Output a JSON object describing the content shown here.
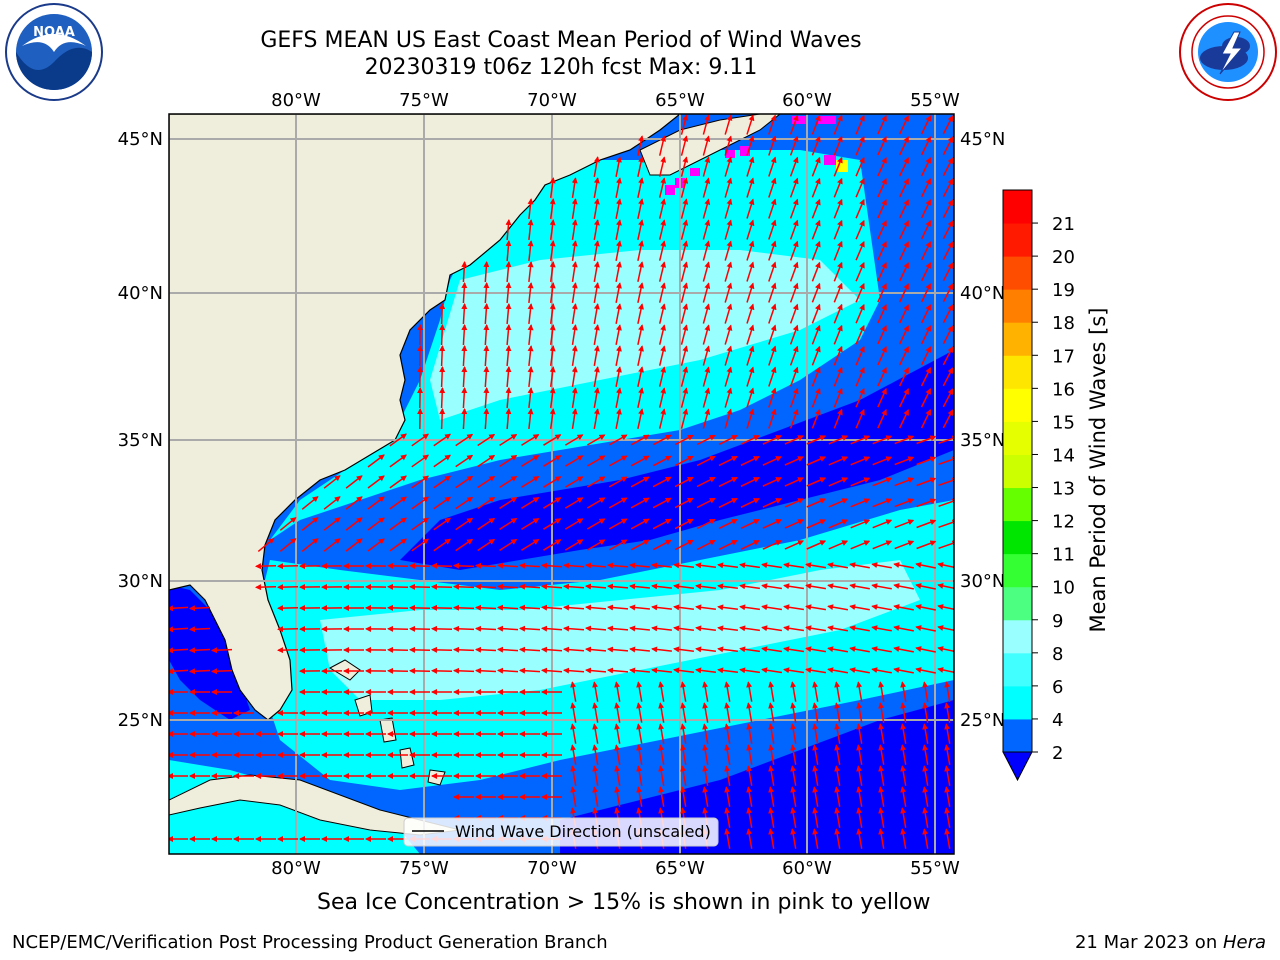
{
  "header": {
    "title_line1": "GEFS MEAN US East Coast Mean Period of Wind Waves",
    "title_line2": "20230319 t06z 120h fcst   Max: 9.11"
  },
  "logos": {
    "left": {
      "name": "noaa-logo",
      "text": "NOAA",
      "ring_text": "NATIONAL OCEANIC AND ATMOSPHERIC ADMINISTRATION · U.S. DEPARTMENT OF COMMERCE"
    },
    "right": {
      "name": "nws-logo",
      "ring_text": "NATIONAL WEATHER SERVICE"
    }
  },
  "map": {
    "region": "US East Coast / Western North Atlantic",
    "lon_ticks": [
      "80°W",
      "75°W",
      "70°W",
      "65°W",
      "60°W",
      "55°W"
    ],
    "lat_ticks": [
      "45°N",
      "40°N",
      "35°N",
      "30°N",
      "25°N"
    ],
    "lon_range": [
      -85,
      -54.5
    ],
    "lat_range": [
      20.5,
      45.8
    ],
    "gridlines": true,
    "vector_color": "#ff0000",
    "land_color": "#efeedd",
    "legend": {
      "label": "Wind Wave Direction (unscaled)",
      "placement": "lower-center"
    }
  },
  "colorbar": {
    "label": "Mean Period of Wind Waves [s]",
    "ticks": [
      "2",
      "4",
      "6",
      "8",
      "9",
      "10",
      "11",
      "12",
      "13",
      "14",
      "15",
      "16",
      "17",
      "18",
      "19",
      "20",
      "21"
    ],
    "colors": [
      "#0066ff",
      "#00ffff",
      "#42ffff",
      "#99ffff",
      "#4dff80",
      "#33ff33",
      "#00e600",
      "#66ff00",
      "#ccff00",
      "#e6ff00",
      "#ffff00",
      "#ffe600",
      "#ffb300",
      "#ff8000",
      "#ff4d00",
      "#ff1a00",
      "#ff0000"
    ],
    "under_color": "#0000ff"
  },
  "notes": {
    "sea_ice": "Sea Ice Concentration > 15% is shown in pink to yellow"
  },
  "footer": {
    "left": "NCEP/EMC/Verification Post Processing Product Generation Branch",
    "right_prefix": "21 Mar 2023 on ",
    "right_machine": "Hera"
  },
  "chart_data": {
    "type": "heatmap",
    "title": "GEFS MEAN US East Coast Mean Period of Wind Waves",
    "subtitle": "20230319 t06z 120h fcst   Max: 9.11",
    "xlabel": "",
    "ylabel": "",
    "colorbar_label": "Mean Period of Wind Waves [s]",
    "colorbar_range": [
      2,
      21
    ],
    "max_value": 9.11
  }
}
